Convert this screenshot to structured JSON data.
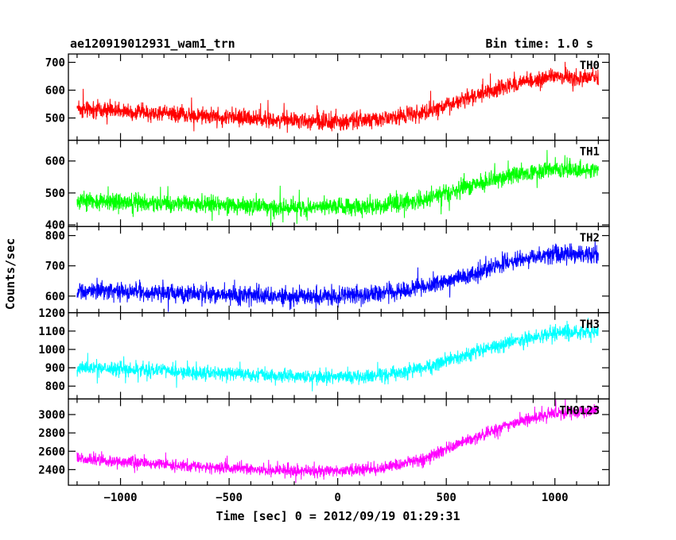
{
  "header": {
    "title": "ae120919012931_wam1_trn",
    "bin_time": "Bin time: 1.0 s"
  },
  "chart_data": {
    "type": "line",
    "title": "ae120919012931_wam1_trn",
    "xlabel": "Time [sec] 0 = 2012/09/19 01:29:31",
    "ylabel": "Counts/sec",
    "xlim": [
      -1240,
      1250
    ],
    "x_data_range": [
      -1200,
      1200
    ],
    "bin_seconds": 1.0,
    "x_ticks": [
      -1000,
      -500,
      0,
      500,
      1000
    ],
    "x_tick_labels": [
      "−1000",
      "−500",
      "0",
      "500",
      "1000"
    ],
    "grid": false,
    "panels": [
      {
        "name": "TH0",
        "color": "#ff0000",
        "ylim": [
          420,
          730
        ],
        "yticks": [
          500,
          600,
          700
        ],
        "ytick_labels": [
          "500",
          "600",
          "700"
        ],
        "trend": {
          "x": [
            -1200,
            -700,
            -300,
            0,
            200,
            400,
            600,
            800,
            1000,
            1200
          ],
          "y": [
            535,
            510,
            495,
            485,
            495,
            520,
            570,
            620,
            650,
            645
          ]
        },
        "noise_sd": 28
      },
      {
        "name": "TH1",
        "color": "#00ff00",
        "ylim": [
          395,
          665
        ],
        "yticks": [
          400,
          500,
          600
        ],
        "ytick_labels": [
          "400",
          "500",
          "600"
        ],
        "trend": {
          "x": [
            -1200,
            -700,
            -300,
            0,
            200,
            400,
            600,
            800,
            1000,
            1200
          ],
          "y": [
            475,
            465,
            455,
            455,
            460,
            480,
            520,
            555,
            575,
            570
          ]
        },
        "noise_sd": 26
      },
      {
        "name": "TH2",
        "color": "#0000ff",
        "ylim": [
          545,
          830
        ],
        "yticks": [
          600,
          700,
          800
        ],
        "ytick_labels": [
          "600",
          "700",
          "800"
        ],
        "trend": {
          "x": [
            -1200,
            -700,
            -300,
            0,
            200,
            400,
            600,
            800,
            1000,
            1200
          ],
          "y": [
            620,
            610,
            600,
            600,
            610,
            630,
            665,
            715,
            740,
            740
          ]
        },
        "noise_sd": 28
      },
      {
        "name": "TH3",
        "color": "#00ffff",
        "ylim": [
          730,
          1200
        ],
        "yticks": [
          800,
          900,
          1000,
          1100,
          1200
        ],
        "ytick_labels": [
          "800",
          "900",
          "1000",
          "1100",
          "1200"
        ],
        "trend": {
          "x": [
            -1200,
            -700,
            -300,
            0,
            200,
            400,
            600,
            800,
            1000,
            1200
          ],
          "y": [
            900,
            880,
            855,
            850,
            860,
            900,
            975,
            1040,
            1090,
            1095
          ]
        },
        "noise_sd": 38
      },
      {
        "name": "TH0123",
        "color": "#ff00ff",
        "ylim": [
          2230,
          3170
        ],
        "yticks": [
          2400,
          2600,
          2800,
          3000
        ],
        "ytick_labels": [
          "2400",
          "2600",
          "2800",
          "3000"
        ],
        "trend": {
          "x": [
            -1200,
            -700,
            -300,
            0,
            200,
            400,
            600,
            800,
            1000,
            1200
          ],
          "y": [
            2520,
            2440,
            2390,
            2380,
            2410,
            2520,
            2720,
            2900,
            3020,
            3050
          ]
        },
        "noise_sd": 62
      }
    ]
  }
}
